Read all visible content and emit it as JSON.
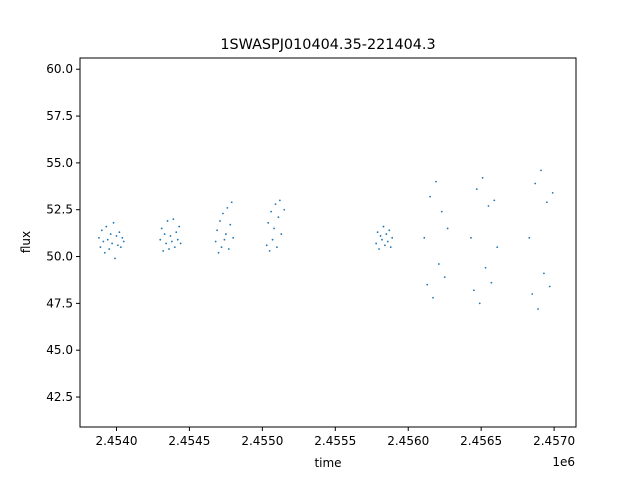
{
  "chart_data": {
    "type": "scatter",
    "title": "1SWASPJ010404.35-221404.3",
    "xlabel": "time",
    "ylabel": "flux",
    "x_offset_label": "1e6",
    "xlim": [
      2453750,
      2457150
    ],
    "ylim": [
      40.9,
      60.6
    ],
    "grid": false,
    "marker_color": "#1f77b4",
    "x_ticks": [
      2454000,
      2454500,
      2455000,
      2455500,
      2456000,
      2456500,
      2457000
    ],
    "x_tick_labels": [
      "2.4540",
      "2.4545",
      "2.4550",
      "2.4555",
      "2.4560",
      "2.4565",
      "2.4570"
    ],
    "y_ticks": [
      42.5,
      45.0,
      47.5,
      50.0,
      52.5,
      55.0,
      57.5,
      60.0
    ],
    "y_tick_labels": [
      "42.5",
      "45.0",
      "47.5",
      "50.0",
      "52.5",
      "55.0",
      "57.5",
      "60.0"
    ],
    "series": [
      {
        "x": [
          2453880,
          2453890,
          2453900,
          2453910,
          2453920,
          2453930,
          2453940,
          2453950,
          2453960,
          2453970,
          2453980,
          2453990,
          2454000,
          2454010,
          2454020,
          2454030,
          2454040,
          2454050,
          2454300,
          2454310,
          2454320,
          2454330,
          2454340,
          2454350,
          2454360,
          2454370,
          2454380,
          2454390,
          2454400,
          2454410,
          2454420,
          2454430,
          2454440,
          2454680,
          2454690,
          2454700,
          2454710,
          2454720,
          2454730,
          2454740,
          2454750,
          2454760,
          2454770,
          2454780,
          2454790,
          2454800,
          2455030,
          2455040,
          2455050,
          2455060,
          2455070,
          2455080,
          2455090,
          2455100,
          2455110,
          2455120,
          2455130,
          2455150,
          2455780,
          2455790,
          2455800,
          2455810,
          2455820,
          2455830,
          2455840,
          2455850,
          2455860,
          2455870,
          2455880,
          2455890,
          2456110,
          2456130,
          2456150,
          2456170,
          2456190,
          2456210,
          2456230,
          2456250,
          2456270,
          2456430,
          2456450,
          2456470,
          2456490,
          2456510,
          2456530,
          2456550,
          2456570,
          2456590,
          2456610,
          2456830,
          2456850,
          2456870,
          2456890,
          2456910,
          2456930,
          2456950,
          2456970,
          2456990
        ],
        "y": [
          51.0,
          50.5,
          51.4,
          50.8,
          50.2,
          51.6,
          50.9,
          50.4,
          51.2,
          50.7,
          51.8,
          49.9,
          51.1,
          50.6,
          51.3,
          50.5,
          51.0,
          50.8,
          50.9,
          51.5,
          50.3,
          51.2,
          50.7,
          51.9,
          50.4,
          51.1,
          50.8,
          52.0,
          50.5,
          51.3,
          50.9,
          51.6,
          50.7,
          50.8,
          51.4,
          50.2,
          51.9,
          50.5,
          52.3,
          50.9,
          51.2,
          52.6,
          50.4,
          51.7,
          52.9,
          51.0,
          50.6,
          51.8,
          50.3,
          52.4,
          50.9,
          51.5,
          52.8,
          50.5,
          52.1,
          53.0,
          51.2,
          52.5,
          50.7,
          51.3,
          50.4,
          51.1,
          50.9,
          51.6,
          50.6,
          51.2,
          50.8,
          51.4,
          50.5,
          51.0,
          51.0,
          48.5,
          53.2,
          47.8,
          54.0,
          49.6,
          52.4,
          48.9,
          51.5,
          51.0,
          48.2,
          53.6,
          47.5,
          54.2,
          49.4,
          52.7,
          48.6,
          53.0,
          50.5,
          51.0,
          48.0,
          53.9,
          47.2,
          54.6,
          49.1,
          52.9,
          48.4,
          53.4
        ]
      }
    ]
  }
}
